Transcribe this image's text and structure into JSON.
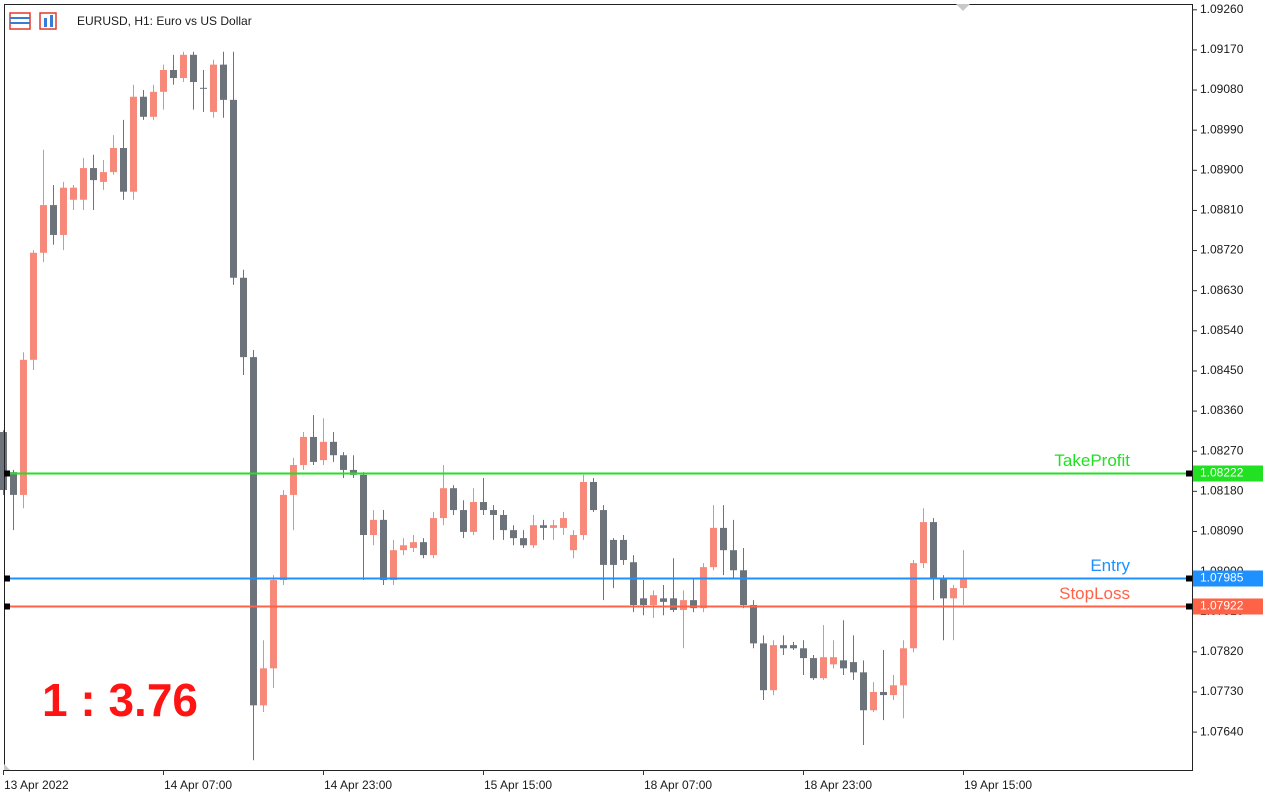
{
  "chart_data": {
    "type": "candlestick",
    "title": "EURUSD, H1:  Euro vs US Dollar",
    "annotation": "1 : 3.76",
    "categories": [
      "13 Apr 2022",
      null,
      null,
      null,
      null,
      null,
      null,
      null,
      null,
      null,
      null,
      null,
      null,
      null,
      null,
      null,
      "14 Apr 07:00",
      null,
      null,
      null,
      null,
      null,
      null,
      null,
      null,
      null,
      null,
      null,
      null,
      null,
      null,
      null,
      "14 Apr 23:00",
      null,
      null,
      null,
      null,
      null,
      null,
      null,
      null,
      null,
      null,
      null,
      null,
      null,
      null,
      null,
      "15 Apr 15:00",
      null,
      null,
      null,
      null,
      null,
      null,
      null,
      null,
      null,
      null,
      null,
      null,
      null,
      null,
      null,
      "18 Apr 07:00",
      null,
      null,
      null,
      null,
      null,
      null,
      null,
      null,
      null,
      null,
      null,
      null,
      null,
      null,
      null,
      "18 Apr 23:00",
      null,
      null,
      null,
      null,
      null,
      null,
      null,
      null,
      null,
      null,
      null,
      null,
      null,
      null,
      null,
      "19 Apr 15:00"
    ],
    "open": [
      1.08313,
      1.08223,
      1.08172,
      1.08475,
      1.08715,
      1.08822,
      1.08755,
      1.08834,
      1.08834,
      1.08905,
      1.08874,
      1.08896,
      1.0895,
      1.08852,
      1.09065,
      1.0902,
      1.09076,
      1.09125,
      1.09107,
      1.09159,
      1.09085,
      1.09031,
      1.09137,
      1.09058,
      1.08659,
      1.08481,
      1.077,
      1.07783,
      1.07981,
      1.08172,
      1.08239,
      1.08302,
      1.0825,
      1.08291,
      1.08261,
      1.08228,
      1.08217,
      1.08082,
      1.08116,
      1.07981,
      1.08048,
      1.08053,
      1.08066,
      1.08037,
      1.0812,
      1.08187,
      1.08138,
      1.08089,
      1.08156,
      1.08138,
      1.08127,
      1.08093,
      1.08075,
      1.08059,
      1.08104,
      1.08098,
      1.08098,
      1.08048,
      1.08082,
      1.08201,
      1.08138,
      1.08071,
      1.08071,
      1.08021,
      1.0794,
      1.07925,
      1.0794,
      1.0794,
      1.07914,
      1.07936,
      1.07918,
      1.0801,
      1.08098,
      1.08048,
      1.08003,
      1.07925,
      1.07839,
      1.07734,
      1.07835,
      1.07835,
      1.07828,
      1.07806,
      1.07761,
      1.07792,
      1.07801,
      1.07797,
      1.07774,
      1.07689,
      1.0773,
      1.07723,
      1.07745,
      1.07828,
      1.08019,
      1.08111,
      1.07985,
      1.0794,
      1.07963
    ],
    "high": [
      1.08317,
      1.08228,
      1.08492,
      1.08721,
      1.08946,
      1.08867,
      1.08874,
      1.08867,
      1.08928,
      1.08935,
      1.08923,
      1.08979,
      1.09013,
      1.09092,
      1.0908,
      1.09092,
      1.09137,
      1.09159,
      1.09166,
      1.09166,
      1.09125,
      1.09148,
      1.09166,
      1.09166,
      1.08677,
      1.08497,
      1.07846,
      1.07992,
      1.08183,
      1.08255,
      1.08313,
      1.08351,
      1.08344,
      1.08313,
      1.08268,
      1.08261,
      1.08223,
      1.08138,
      1.08138,
      1.08071,
      1.08075,
      1.08082,
      1.08075,
      1.08134,
      1.08239,
      1.08194,
      1.0816,
      1.08187,
      1.0821,
      1.08149,
      1.08138,
      1.08104,
      1.08093,
      1.08127,
      1.08116,
      1.08116,
      1.08134,
      1.08093,
      1.08217,
      1.0821,
      1.08149,
      1.08075,
      1.08082,
      1.08037,
      1.07981,
      1.07958,
      1.0797,
      1.0803,
      1.07958,
      1.07985,
      1.08019,
      1.08149,
      1.08149,
      1.08116,
      1.08053,
      1.07936,
      1.07857,
      1.07846,
      1.07857,
      1.07842,
      1.07846,
      1.07813,
      1.0788,
      1.07846,
      1.07891,
      1.07857,
      1.07801,
      1.07752,
      1.07824,
      1.07768,
      1.07846,
      1.08026,
      1.08142,
      1.0812,
      1.07992,
      1.0797,
      1.08048
    ],
    "low": [
      1.08172,
      1.08093,
      1.08142,
      1.08452,
      1.08694,
      1.08733,
      1.08721,
      1.08811,
      1.08811,
      1.08811,
      1.08856,
      1.0889,
      1.08834,
      1.08834,
      1.09013,
      1.09013,
      1.09036,
      1.09092,
      1.09098,
      1.09036,
      1.09031,
      1.09018,
      1.09018,
      1.08643,
      1.08441,
      1.07577,
      1.07685,
      1.07739,
      1.0797,
      1.08093,
      1.08228,
      1.08239,
      1.08239,
      1.08246,
      1.0821,
      1.0821,
      1.07981,
      1.08059,
      1.0797,
      1.0797,
      1.08037,
      1.08044,
      1.0803,
      1.0803,
      1.08104,
      1.08127,
      1.08075,
      1.08082,
      1.08127,
      1.08071,
      1.08071,
      1.08059,
      1.08053,
      1.08053,
      1.08071,
      1.08071,
      1.08082,
      1.0803,
      1.08071,
      1.08134,
      1.07936,
      1.07963,
      1.08015,
      1.07909,
      1.07902,
      1.07896,
      1.07902,
      1.07909,
      1.07828,
      1.07909,
      1.07909,
      1.08003,
      1.07992,
      1.07985,
      1.07918,
      1.07828,
      1.07712,
      1.07723,
      1.07813,
      1.07824,
      1.07768,
      1.07757,
      1.07757,
      1.07783,
      1.07768,
      1.07757,
      1.07611,
      1.07685,
      1.07667,
      1.07712,
      1.07671,
      1.07819,
      1.08008,
      1.07936,
      1.07846,
      1.07846,
      1.07925
    ],
    "close": [
      1.08183,
      1.08172,
      1.08475,
      1.08715,
      1.08822,
      1.08755,
      1.08861,
      1.08861,
      1.08905,
      1.08878,
      1.08896,
      1.0895,
      1.08852,
      1.09065,
      1.0902,
      1.09076,
      1.09125,
      1.09107,
      1.09159,
      1.09098,
      1.09083,
      1.09137,
      1.09058,
      1.08659,
      1.08481,
      1.077,
      1.07783,
      1.07981,
      1.08172,
      1.08239,
      1.08302,
      1.08246,
      1.08291,
      1.08261,
      1.08228,
      1.08217,
      1.08082,
      1.08116,
      1.07981,
      1.08048,
      1.08059,
      1.08066,
      1.08037,
      1.0812,
      1.08187,
      1.08138,
      1.08089,
      1.08156,
      1.08138,
      1.08127,
      1.08093,
      1.08075,
      1.08059,
      1.08104,
      1.08098,
      1.08104,
      1.0812,
      1.08082,
      1.08201,
      1.08138,
      1.08015,
      1.08015,
      1.08026,
      1.07925,
      1.07925,
      1.07947,
      1.07932,
      1.07914,
      1.07936,
      1.07918,
      1.0801,
      1.08098,
      1.08048,
      1.08003,
      1.07925,
      1.07839,
      1.07734,
      1.07835,
      1.07828,
      1.07828,
      1.07806,
      1.07761,
      1.07808,
      1.07808,
      1.07783,
      1.07774,
      1.07689,
      1.0773,
      1.07723,
      1.07745,
      1.07828,
      1.08019,
      1.08111,
      1.07985,
      1.0794,
      1.07963,
      1.07985
    ],
    "up_color": "#f7897a",
    "down_color": "#6d737a",
    "ylim": [
      1.07555,
      1.09273
    ],
    "yticks": [
      {
        "value": 1.0926,
        "label": "1.09260"
      },
      {
        "value": 1.0917,
        "label": "1.09170"
      },
      {
        "value": 1.0908,
        "label": "1.09080"
      },
      {
        "value": 1.0899,
        "label": "1.08990"
      },
      {
        "value": 1.089,
        "label": "1.08900"
      },
      {
        "value": 1.0881,
        "label": "1.08810"
      },
      {
        "value": 1.0872,
        "label": "1.08720"
      },
      {
        "value": 1.0863,
        "label": "1.08630"
      },
      {
        "value": 1.0854,
        "label": "1.08540"
      },
      {
        "value": 1.0845,
        "label": "1.08450"
      },
      {
        "value": 1.0836,
        "label": "1.08360"
      },
      {
        "value": 1.0827,
        "label": "1.08270"
      },
      {
        "value": 1.0818,
        "label": "1.08180"
      },
      {
        "value": 1.0809,
        "label": "1.08090"
      },
      {
        "value": 1.08,
        "label": "1.08000"
      },
      {
        "value": 1.0791,
        "label": "1.07910"
      },
      {
        "value": 1.0782,
        "label": "1.07820"
      },
      {
        "value": 1.0773,
        "label": "1.07730"
      },
      {
        "value": 1.0764,
        "label": "1.07640"
      }
    ],
    "lines": [
      {
        "name": "TakeProfit",
        "value": 1.08222,
        "color": "#22e022"
      },
      {
        "name": "Entry",
        "value": 1.07985,
        "color": "#1e90ff"
      },
      {
        "name": "StopLoss",
        "value": 1.07922,
        "color": "#ff6347"
      }
    ]
  }
}
